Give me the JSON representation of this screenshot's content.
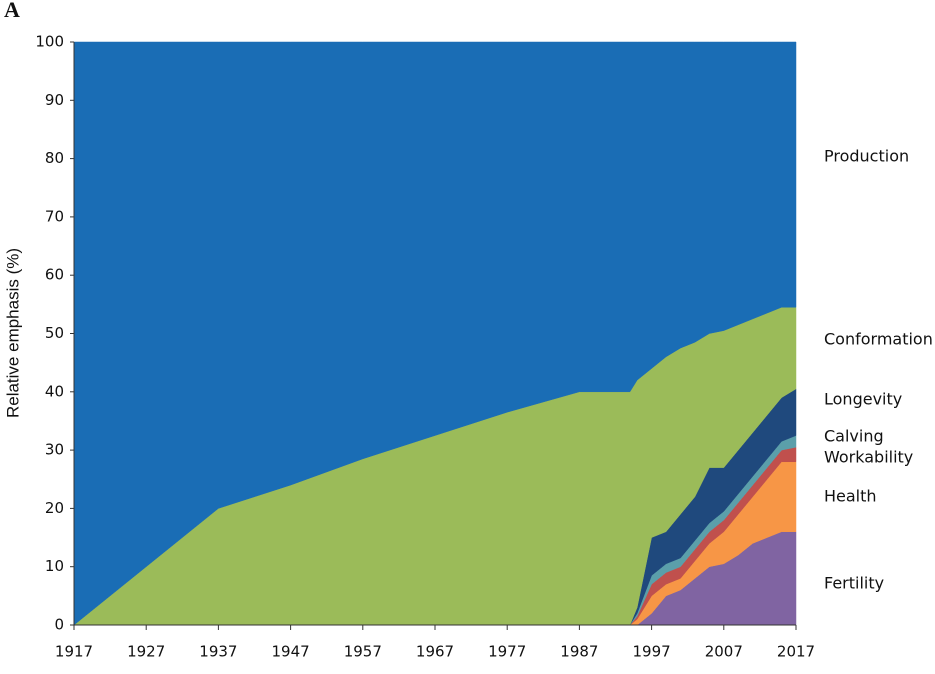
{
  "panel_label": "A",
  "chart_data": {
    "type": "stacked_area",
    "ylabel": "Relative emphasis (%)",
    "x": [
      1917,
      1937,
      1947,
      1957,
      1967,
      1977,
      1987,
      1994,
      1995,
      1997,
      1999,
      2001,
      2003,
      2005,
      2007,
      2009,
      2011,
      2013,
      2015,
      2017
    ],
    "series": [
      {
        "name": "Fertility",
        "color": "#8064a2",
        "values": [
          0,
          0,
          0,
          0,
          0,
          0,
          0,
          0,
          0,
          2,
          5,
          6,
          8,
          10,
          10.5,
          12,
          14,
          15,
          16,
          16
        ]
      },
      {
        "name": "Health",
        "color": "#f79646",
        "values": [
          0,
          0,
          0,
          0,
          0,
          0,
          0,
          0,
          1,
          3,
          2,
          2,
          3,
          4,
          5.5,
          7,
          8,
          10,
          12,
          12
        ]
      },
      {
        "name": "Workability",
        "color": "#c0504d",
        "values": [
          0,
          0,
          0,
          0,
          0,
          0,
          0,
          0,
          0.5,
          2,
          2,
          2,
          2,
          2,
          2,
          2,
          2,
          2,
          2,
          2.5
        ]
      },
      {
        "name": "Calving",
        "color": "#5b9faa",
        "values": [
          0,
          0,
          0,
          0,
          0,
          0,
          0,
          0,
          0.5,
          1.5,
          1.5,
          1.5,
          1.5,
          1.5,
          1.5,
          1.5,
          1.5,
          1.5,
          1.5,
          2
        ]
      },
      {
        "name": "Longevity",
        "color": "#1f497d",
        "values": [
          0,
          0,
          0,
          0,
          0,
          0,
          0,
          0,
          1,
          6.5,
          5.5,
          7.5,
          7.5,
          9.5,
          7.5,
          7.5,
          7.5,
          7.5,
          7.5,
          8
        ]
      },
      {
        "name": "Conformation",
        "color": "#9bbb59",
        "values": [
          0,
          20,
          24,
          28.5,
          32.5,
          36.5,
          40,
          40,
          39,
          29,
          30,
          28.5,
          26.5,
          23,
          23.5,
          21.5,
          19.5,
          17.5,
          15.5,
          14
        ]
      },
      {
        "name": "Production",
        "color": "#1a6db5",
        "values": [
          100,
          80,
          76,
          71.5,
          67.5,
          63.5,
          60,
          60,
          58,
          56,
          54,
          52.5,
          51.5,
          50,
          49.5,
          48.5,
          47.5,
          46.5,
          45.5,
          45.5
        ]
      }
    ],
    "xlim": [
      1917,
      2017
    ],
    "xticks": [
      1917,
      1927,
      1937,
      1947,
      1957,
      1967,
      1977,
      1987,
      1997,
      2007,
      2017
    ],
    "ylim": [
      0,
      100
    ],
    "yticks": [
      0,
      10,
      20,
      30,
      40,
      50,
      60,
      70,
      80,
      90,
      100
    ]
  }
}
